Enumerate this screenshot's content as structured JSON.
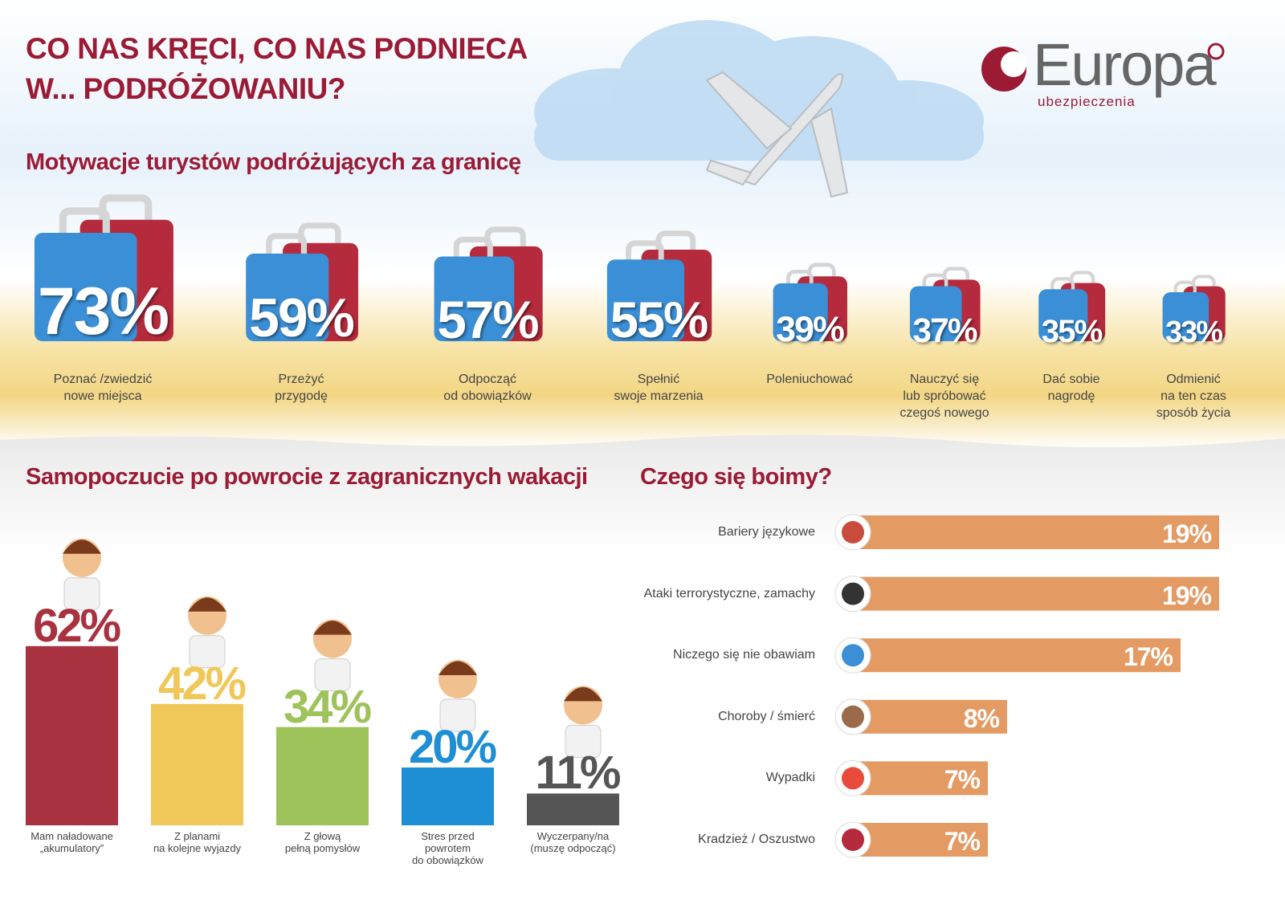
{
  "header": {
    "title": "CO NAS KRĘCI, CO NAS PODNIECA\nW... PODRÓŻOWANIU?",
    "brand": "Europa",
    "brand_tagline": "ubezpieczenia"
  },
  "chart_data": [
    {
      "type": "pictogram",
      "title": "Motywacje turystów podróżujących za granicę",
      "categories": [
        "Poznać /zwiedzić\nnowe miejsca",
        "Przeżyć\nprzygodę",
        "Odpocząć\nod obowiązków",
        "Spełnić\nswoje marzenia",
        "Poleniuchować",
        "Nauczyć się\nlub spróbować\nczegoś nowego",
        "Dać sobie\nnagrodę",
        "Odmienić\nna ten czas\nsposób życia"
      ],
      "values": [
        73,
        59,
        57,
        55,
        39,
        37,
        35,
        33
      ],
      "value_labels": [
        "73%",
        "59%",
        "57%",
        "55%",
        "39%",
        "37%",
        "35%",
        "33%"
      ],
      "color": "#3a8fd6",
      "back_color": "#b52a3c"
    },
    {
      "type": "bar",
      "title": "Samopoczucie po powrocie z zagranicznych wakacji",
      "categories": [
        "Mam naładowane\n„akumulatory”",
        "Z planami\nna kolejne wyjazdy",
        "Z głową\npełną pomysłów",
        "Stres przed\npowrotem\ndo obowiązków",
        "Wyczerpany/na\n(muszę odpocząć)"
      ],
      "values": [
        62,
        42,
        34,
        20,
        11
      ],
      "value_labels": [
        "62%",
        "42%",
        "34%",
        "20%",
        "11%"
      ],
      "colors": [
        "#a8323f",
        "#f0c85a",
        "#9dc35a",
        "#1e8fd5",
        "#555555"
      ]
    },
    {
      "type": "barh",
      "title": "Czego się boimy?",
      "categories": [
        "Bariery językowe",
        "Ataki terrorystyczne, zamachy",
        "Niczego się nie obawiam",
        "Choroby / śmierć",
        "Wypadki",
        "Kradzież / Oszustwo"
      ],
      "values": [
        19,
        19,
        17,
        8,
        7,
        7
      ],
      "value_labels": [
        "19%",
        "19%",
        "17%",
        "8%",
        "7%",
        "7%"
      ],
      "color": "#e39a63"
    }
  ]
}
